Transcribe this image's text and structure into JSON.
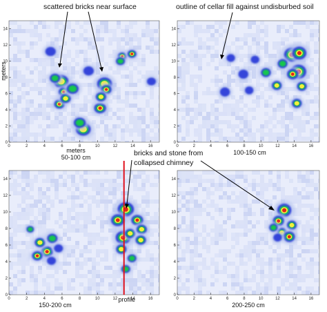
{
  "chart_data": [
    {
      "type": "heatmap",
      "caption": "50-100 cm",
      "xlim": [
        0,
        17
      ],
      "ylim": [
        0,
        15
      ],
      "xticks": [
        0,
        2,
        4,
        6,
        8,
        10,
        12,
        14,
        16
      ],
      "yticks": [
        0,
        2,
        4,
        6,
        8,
        10,
        12,
        14
      ],
      "xlabel": "meters",
      "ylabel": "meters",
      "anomalies": [
        {
          "x": 5.9,
          "y": 7.5,
          "i": 0.7,
          "r": 0.5
        },
        {
          "x": 6.2,
          "y": 6.2,
          "i": 1.0,
          "r": 0.35
        },
        {
          "x": 5.7,
          "y": 4.7,
          "i": 0.9,
          "r": 0.35
        },
        {
          "x": 6.4,
          "y": 5.4,
          "i": 0.8,
          "r": 0.35
        },
        {
          "x": 5.2,
          "y": 7.9,
          "i": 0.6,
          "r": 0.35
        },
        {
          "x": 7.2,
          "y": 6.6,
          "i": 0.6,
          "r": 0.4
        },
        {
          "x": 10.8,
          "y": 7.2,
          "i": 0.8,
          "r": 0.5
        },
        {
          "x": 11.0,
          "y": 6.5,
          "i": 0.9,
          "r": 0.35
        },
        {
          "x": 10.3,
          "y": 4.2,
          "i": 0.9,
          "r": 0.4
        },
        {
          "x": 10.4,
          "y": 5.6,
          "i": 0.7,
          "r": 0.35
        },
        {
          "x": 12.8,
          "y": 10.6,
          "i": 1.0,
          "r": 0.3
        },
        {
          "x": 13.9,
          "y": 10.9,
          "i": 0.9,
          "r": 0.3
        },
        {
          "x": 12.6,
          "y": 10.0,
          "i": 0.6,
          "r": 0.3
        },
        {
          "x": 8.4,
          "y": 1.6,
          "i": 0.7,
          "r": 0.5
        },
        {
          "x": 8.0,
          "y": 2.4,
          "i": 0.6,
          "r": 0.4
        },
        {
          "x": 4.7,
          "y": 11.2,
          "i": 0.5,
          "r": 0.35
        },
        {
          "x": 9.0,
          "y": 8.8,
          "i": 0.5,
          "r": 0.35
        },
        {
          "x": 16.1,
          "y": 7.5,
          "i": 0.5,
          "r": 0.3
        }
      ]
    },
    {
      "type": "heatmap",
      "caption": "100-150 cm",
      "xlim": [
        0,
        17
      ],
      "ylim": [
        0,
        15
      ],
      "xticks": [
        0,
        2,
        4,
        6,
        8,
        10,
        12,
        14,
        16
      ],
      "yticks": [
        0,
        2,
        4,
        6,
        8,
        10,
        12,
        14
      ],
      "anomalies": [
        {
          "x": 13.7,
          "y": 10.8,
          "i": 1.0,
          "r": 0.55
        },
        {
          "x": 14.6,
          "y": 11.0,
          "i": 1.0,
          "r": 0.5
        },
        {
          "x": 14.5,
          "y": 8.7,
          "i": 1.0,
          "r": 0.55
        },
        {
          "x": 13.8,
          "y": 8.4,
          "i": 0.9,
          "r": 0.4
        },
        {
          "x": 14.9,
          "y": 6.9,
          "i": 0.8,
          "r": 0.35
        },
        {
          "x": 14.3,
          "y": 4.8,
          "i": 0.7,
          "r": 0.35
        },
        {
          "x": 11.9,
          "y": 7.0,
          "i": 0.7,
          "r": 0.35
        },
        {
          "x": 10.6,
          "y": 8.6,
          "i": 0.6,
          "r": 0.35
        },
        {
          "x": 7.9,
          "y": 8.4,
          "i": 0.5,
          "r": 0.35
        },
        {
          "x": 5.7,
          "y": 6.2,
          "i": 0.5,
          "r": 0.35
        },
        {
          "x": 8.6,
          "y": 6.4,
          "i": 0.5,
          "r": 0.3
        },
        {
          "x": 12.6,
          "y": 9.7,
          "i": 0.6,
          "r": 0.35
        },
        {
          "x": 6.4,
          "y": 10.4,
          "i": 0.5,
          "r": 0.3
        },
        {
          "x": 9.3,
          "y": 10.2,
          "i": 0.5,
          "r": 0.3
        }
      ]
    },
    {
      "type": "heatmap",
      "caption": "150-200 cm",
      "xlim": [
        0,
        17
      ],
      "ylim": [
        0,
        15
      ],
      "xticks": [
        0,
        2,
        4,
        6,
        8,
        10,
        12,
        14,
        16
      ],
      "yticks": [
        0,
        2,
        4,
        6,
        8,
        10,
        12,
        14
      ],
      "profile_x": 13.0,
      "anomalies": [
        {
          "x": 13.2,
          "y": 10.3,
          "i": 1.0,
          "r": 0.55
        },
        {
          "x": 12.3,
          "y": 9.0,
          "i": 0.9,
          "r": 0.45
        },
        {
          "x": 14.5,
          "y": 9.0,
          "i": 0.9,
          "r": 0.4
        },
        {
          "x": 12.9,
          "y": 6.9,
          "i": 1.0,
          "r": 0.5
        },
        {
          "x": 13.7,
          "y": 7.4,
          "i": 0.8,
          "r": 0.35
        },
        {
          "x": 15.0,
          "y": 7.9,
          "i": 0.8,
          "r": 0.35
        },
        {
          "x": 14.9,
          "y": 6.6,
          "i": 0.8,
          "r": 0.35
        },
        {
          "x": 12.7,
          "y": 5.5,
          "i": 0.7,
          "r": 0.35
        },
        {
          "x": 13.9,
          "y": 4.4,
          "i": 0.6,
          "r": 0.3
        },
        {
          "x": 13.2,
          "y": 3.1,
          "i": 0.6,
          "r": 0.3
        },
        {
          "x": 4.3,
          "y": 5.2,
          "i": 0.9,
          "r": 0.4
        },
        {
          "x": 3.5,
          "y": 6.3,
          "i": 0.7,
          "r": 0.35
        },
        {
          "x": 3.2,
          "y": 4.7,
          "i": 0.9,
          "r": 0.35
        },
        {
          "x": 4.9,
          "y": 6.8,
          "i": 0.6,
          "r": 0.35
        },
        {
          "x": 2.4,
          "y": 7.9,
          "i": 0.6,
          "r": 0.25
        },
        {
          "x": 5.6,
          "y": 5.6,
          "i": 0.5,
          "r": 0.3
        },
        {
          "x": 4.8,
          "y": 4.1,
          "i": 0.5,
          "r": 0.3
        }
      ]
    },
    {
      "type": "heatmap",
      "caption": "200-250 cm",
      "xlim": [
        0,
        17
      ],
      "ylim": [
        0,
        15
      ],
      "xticks": [
        0,
        2,
        4,
        6,
        8,
        10,
        12,
        14,
        16
      ],
      "yticks": [
        0,
        2,
        4,
        6,
        8,
        10,
        12,
        14
      ],
      "anomalies": [
        {
          "x": 12.8,
          "y": 10.2,
          "i": 1.0,
          "r": 0.5
        },
        {
          "x": 12.1,
          "y": 8.9,
          "i": 0.9,
          "r": 0.4
        },
        {
          "x": 13.7,
          "y": 8.4,
          "i": 0.8,
          "r": 0.35
        },
        {
          "x": 12.5,
          "y": 7.5,
          "i": 0.8,
          "r": 0.35
        },
        {
          "x": 13.4,
          "y": 7.0,
          "i": 0.9,
          "r": 0.4
        },
        {
          "x": 11.5,
          "y": 8.1,
          "i": 0.6,
          "r": 0.3
        },
        {
          "x": 12.0,
          "y": 6.9,
          "i": 0.5,
          "r": 0.3
        }
      ]
    }
  ],
  "annotations": {
    "scattered": "scattered bricks near surface",
    "cellar": "outline of cellar fill against undisburbed soil",
    "chimney_1": "bricks and stone from",
    "chimney_2": "collapsed chimney",
    "profile": "profile"
  },
  "colors": {
    "background": "#e9edfb",
    "low": "#b9c6ef",
    "mid": "#1b2fd6",
    "green": "#19c84b",
    "yellow": "#f4f03a",
    "red": "#e2241c",
    "profile_line": "#e0101c"
  }
}
